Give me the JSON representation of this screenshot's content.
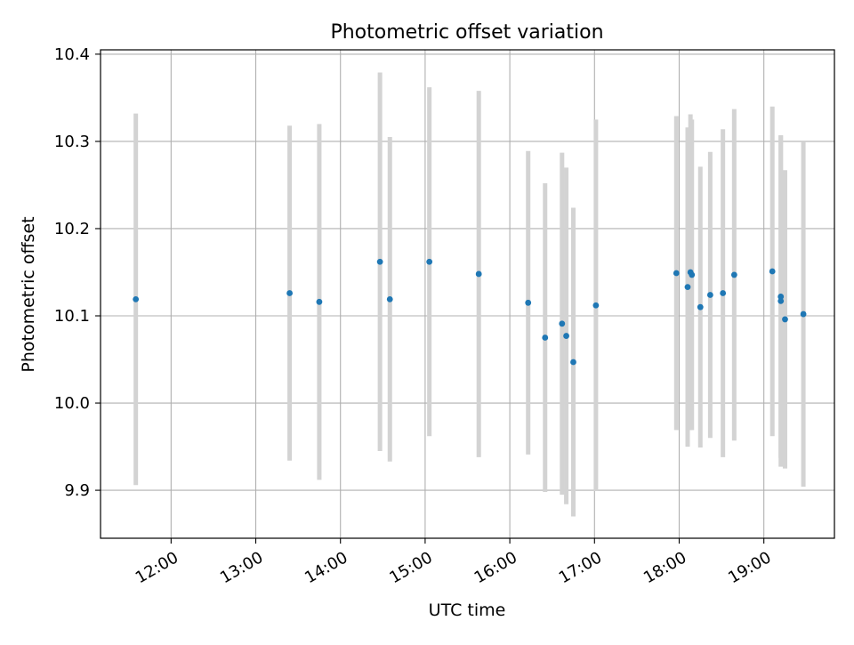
{
  "chart_data": {
    "type": "scatter",
    "title": "Photometric offset variation",
    "xlabel": "UTC time",
    "ylabel": "Photometric offset",
    "xlim": [
      "11:10",
      "19:50"
    ],
    "ylim": [
      9.845,
      10.405
    ],
    "x_ticks": [
      "12:00",
      "13:00",
      "14:00",
      "15:00",
      "16:00",
      "17:00",
      "18:00",
      "19:00"
    ],
    "y_ticks": [
      "9.9",
      "10.0",
      "10.1",
      "10.2",
      "10.3",
      "10.4"
    ],
    "grid": true,
    "colors": {
      "point": "#1f77b4",
      "errorbar": "#d3d3d3",
      "grid": "#b0b0b0"
    },
    "points": [
      {
        "x": "11:35",
        "y": 10.119,
        "err": 0.213
      },
      {
        "x": "13:24",
        "y": 10.126,
        "err": 0.192
      },
      {
        "x": "13:45",
        "y": 10.116,
        "err": 0.204
      },
      {
        "x": "14:28",
        "y": 10.162,
        "err": 0.217
      },
      {
        "x": "14:35",
        "y": 10.119,
        "err": 0.186
      },
      {
        "x": "15:03",
        "y": 10.162,
        "err": 0.2
      },
      {
        "x": "15:38",
        "y": 10.148,
        "err": 0.21
      },
      {
        "x": "16:13",
        "y": 10.115,
        "err": 0.174
      },
      {
        "x": "16:25",
        "y": 10.075,
        "err": 0.177
      },
      {
        "x": "16:37",
        "y": 10.091,
        "err": 0.196
      },
      {
        "x": "16:40",
        "y": 10.077,
        "err": 0.193
      },
      {
        "x": "16:45",
        "y": 10.047,
        "err": 0.177
      },
      {
        "x": "17:01",
        "y": 10.112,
        "err": 0.213
      },
      {
        "x": "17:58",
        "y": 10.149,
        "err": 0.18
      },
      {
        "x": "18:06",
        "y": 10.133,
        "err": 0.183
      },
      {
        "x": "18:08",
        "y": 10.15,
        "err": 0.181
      },
      {
        "x": "18:09",
        "y": 10.147,
        "err": 0.178
      },
      {
        "x": "18:15",
        "y": 10.11,
        "err": 0.161
      },
      {
        "x": "18:22",
        "y": 10.124,
        "err": 0.164
      },
      {
        "x": "18:31",
        "y": 10.126,
        "err": 0.188
      },
      {
        "x": "18:39",
        "y": 10.147,
        "err": 0.19
      },
      {
        "x": "19:06",
        "y": 10.151,
        "err": 0.189
      },
      {
        "x": "19:12",
        "y": 10.122,
        "err": 0.185
      },
      {
        "x": "19:12",
        "y": 10.117,
        "err": 0.19
      },
      {
        "x": "19:15",
        "y": 10.096,
        "err": 0.171
      },
      {
        "x": "19:28",
        "y": 10.102,
        "err": 0.198
      }
    ]
  }
}
